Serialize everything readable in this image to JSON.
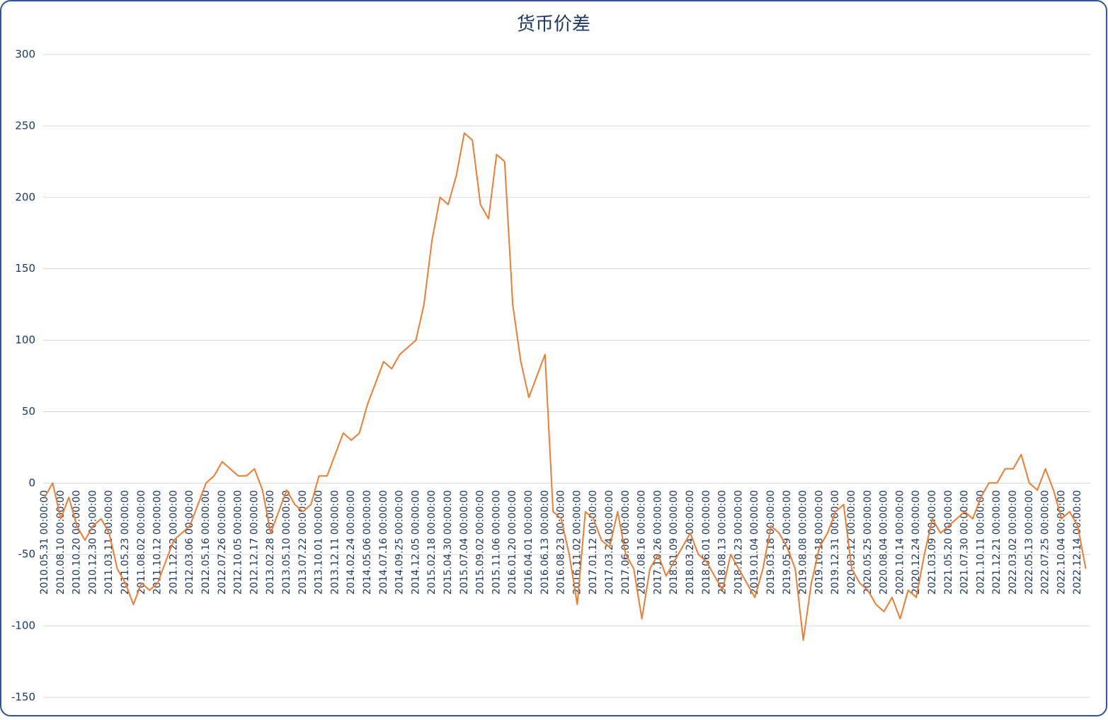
{
  "chart_data": {
    "type": "line",
    "title": "货币价差",
    "categories": [
      "2010.05.31 00:00:00",
      null,
      "2010.08.10 00:00:00",
      null,
      "2010.10.20 00:00:00",
      null,
      "2010.12.30 00:00:00",
      null,
      "2011.03.11 00:00:00",
      null,
      "2011.05.23 00:00:00",
      null,
      "2011.08.02 00:00:00",
      null,
      "2011.10.12 00:00:00",
      null,
      "2011.12.22 00:00:00",
      null,
      "2012.03.06 00:00:00",
      null,
      "2012.05.16 00:00:00",
      null,
      "2012.07.26 00:00:00",
      null,
      "2012.10.05 00:00:00",
      null,
      "2012.12.17 00:00:00",
      null,
      "2013.02.28 00:00:00",
      null,
      "2013.05.10 00:00:00",
      null,
      "2013.07.22 00:00:00",
      null,
      "2013.10.01 00:00:00",
      null,
      "2013.12.11 00:00:00",
      null,
      "2014.02.24 00:00:00",
      null,
      "2014.05.06 00:00:00",
      null,
      "2014.07.16 00:00:00",
      null,
      "2014.09.25 00:00:00",
      null,
      "2014.12.05 00:00:00",
      null,
      "2015.02.18 00:00:00",
      null,
      "2015.04.30 00:00:00",
      null,
      "2015.07.04 00:00:00",
      null,
      "2015.09.02 00:00:00",
      null,
      "2015.11.06 00:00:00",
      null,
      "2016.01.20 00:00:00",
      null,
      "2016.04.01 00:00:00",
      null,
      "2016.06.13 00:00:00",
      null,
      "2016.08.23 00:00:00",
      null,
      "2016.11.02 00:00:00",
      null,
      "2017.01.12 00:00:00",
      null,
      "2017.03.24 00:00:00",
      null,
      "2017.06.06 00:00:00",
      null,
      "2017.08.16 00:00:00",
      null,
      "2017.10.26 00:00:00",
      null,
      "2018.01.09 00:00:00",
      null,
      "2018.03.24 00:00:00",
      null,
      "2018.06.01 00:00:00",
      null,
      "2018.08.13 00:00:00",
      null,
      "2018.10.23 00:00:00",
      null,
      "2019.01.04 00:00:00",
      null,
      "2019.03.18 00:00:00",
      null,
      "2019.05.29 00:00:00",
      null,
      "2019.08.08 00:00:00",
      null,
      "2019.10.18 00:00:00",
      null,
      "2019.12.31 00:00:00",
      null,
      "2020.03.12 00:00:00",
      null,
      "2020.05.25 00:00:00",
      null,
      "2020.08.04 00:00:00",
      null,
      "2020.10.14 00:00:00",
      null,
      "2020.12.24 00:00:00",
      null,
      "2021.03.09 00:00:00",
      null,
      "2021.05.20 00:00:00",
      null,
      "2021.07.30 00:00:00",
      null,
      "2021.10.11 00:00:00",
      null,
      "2021.12.21 00:00:00",
      null,
      "2022.03.02 00:00:00",
      null,
      "2022.05.13 00:00:00",
      null,
      "2022.07.25 00:00:00",
      null,
      "2022.10.04 00:00:00",
      null,
      "2022.12.14 00:00:00",
      null
    ],
    "series": [
      {
        "color": "#ed7d31",
        "values": [
          -10,
          0,
          -25,
          -10,
          -30,
          -40,
          -30,
          -25,
          -35,
          -60,
          -70,
          -85,
          -70,
          -75,
          -70,
          -55,
          -40,
          -35,
          -30,
          -15,
          0,
          5,
          15,
          10,
          5,
          5,
          10,
          -5,
          -35,
          -20,
          -5,
          -15,
          -20,
          -15,
          5,
          5,
          20,
          35,
          30,
          35,
          55,
          70,
          85,
          80,
          90,
          95,
          100,
          125,
          170,
          200,
          195,
          215,
          245,
          240,
          195,
          185,
          230,
          225,
          125,
          85,
          60,
          75,
          90,
          -20,
          -25,
          -50,
          -85,
          -20,
          -25,
          -40,
          -45,
          -20,
          -50,
          -60,
          -95,
          -60,
          -50,
          -65,
          -55,
          -45,
          -35,
          -50,
          -55,
          -65,
          -75,
          -50,
          -60,
          -70,
          -80,
          -60,
          -30,
          -35,
          -45,
          -60,
          -110,
          -70,
          -45,
          -35,
          -20,
          -15,
          -60,
          -70,
          -75,
          -85,
          -90,
          -80,
          -95,
          -75,
          -80,
          -50,
          -25,
          -35,
          -30,
          -25,
          -20,
          -25,
          -10,
          0,
          0,
          10,
          10,
          20,
          0,
          -5,
          10,
          -5,
          -25,
          -20,
          -30,
          -60
        ]
      }
    ],
    "ylim": [
      -150,
      300
    ],
    "yticks": [
      -150,
      -100,
      -50,
      0,
      50,
      100,
      150,
      200,
      250,
      300
    ],
    "grid": true
  }
}
